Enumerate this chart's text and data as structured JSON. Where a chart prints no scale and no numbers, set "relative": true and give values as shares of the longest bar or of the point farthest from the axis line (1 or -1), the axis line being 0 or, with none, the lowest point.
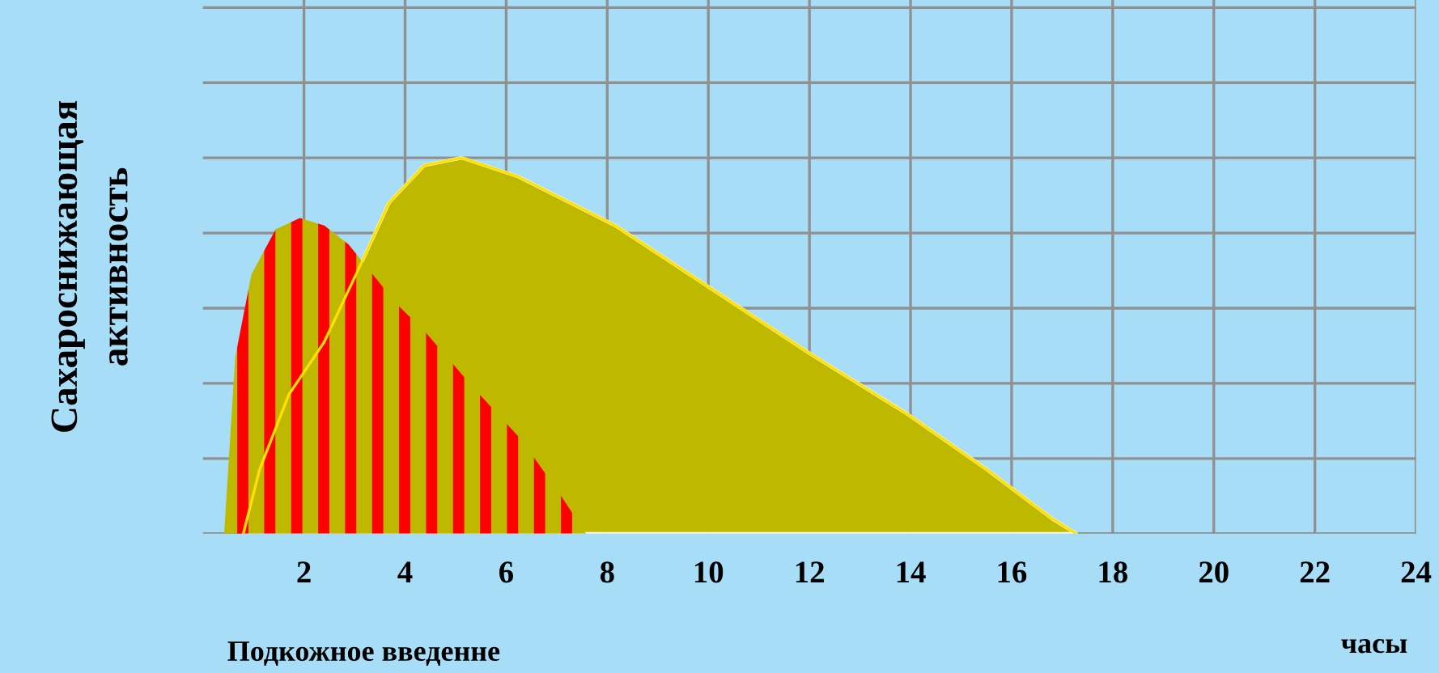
{
  "chart_data": {
    "type": "area",
    "relative": true,
    "xlabel": "Подкожное введенне",
    "ylabel": "Сахароснижающая\nактивность",
    "annotations": [
      "часы"
    ],
    "xlim": [
      0,
      24
    ],
    "xticks": [
      2,
      4,
      6,
      8,
      10,
      12,
      14,
      16,
      18,
      20,
      22,
      24
    ],
    "grid": true,
    "series": [
      {
        "color": "#bfb800",
        "x": [
          0.8,
          1.12,
          1.7,
          2.4,
          3.1,
          3.68,
          4.38,
          5.12,
          6.24,
          8.16,
          10.08,
          12,
          13.92,
          15.52,
          16.8,
          17.28
        ],
        "values": [
          0,
          0.17,
          0.37,
          0.51,
          0.71,
          0.88,
          0.98,
          1.0,
          0.95,
          0.82,
          0.65,
          0.48,
          0.32,
          0.17,
          0.04,
          0
        ]
      },
      {
        "color": "#ff0000",
        "x": [
          0.42,
          0.64,
          0.96,
          1.44,
          1.92,
          2.4,
          2.88,
          3.36,
          3.84,
          4.38,
          5.34,
          6.3,
          7.04,
          7.58
        ],
        "values": [
          0,
          0.47,
          0.69,
          0.81,
          0.84,
          0.82,
          0.77,
          0.69,
          0.61,
          0.54,
          0.39,
          0.25,
          0.11,
          0
        ]
      }
    ]
  }
}
